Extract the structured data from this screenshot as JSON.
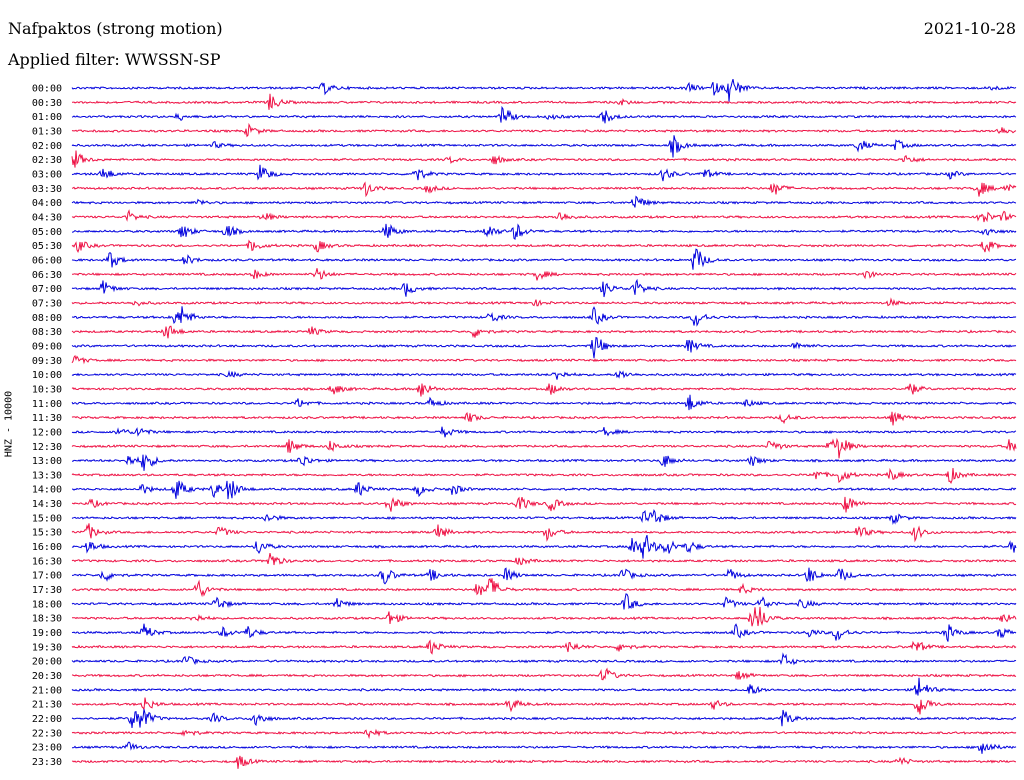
{
  "header": {
    "station_title": "Nafpaktos (strong motion)",
    "date": "2021-10-28",
    "filter": "Applied filter: WWSSN-SP"
  },
  "chart_data": {
    "type": "line",
    "title": "Nafpaktos (strong motion)",
    "subtitle": "Applied filter: WWSSN-SP",
    "ylabel": "HNZ - 10000",
    "xlabel": "",
    "series_colors": [
      "#0000dd",
      "#ee1144"
    ],
    "grid": false,
    "legend": "none",
    "row_labels": [
      "00:00",
      "00:30",
      "01:00",
      "01:30",
      "02:00",
      "02:30",
      "03:00",
      "03:30",
      "04:00",
      "04:30",
      "05:00",
      "05:30",
      "06:00",
      "06:30",
      "07:00",
      "07:30",
      "08:00",
      "08:30",
      "09:00",
      "09:30",
      "10:00",
      "10:30",
      "11:00",
      "11:30",
      "12:00",
      "12:30",
      "13:00",
      "13:30",
      "14:00",
      "14:30",
      "15:00",
      "15:30",
      "16:00",
      "16:30",
      "17:00",
      "17:30",
      "18:00",
      "18:30",
      "19:00",
      "19:30",
      "20:00",
      "20:30",
      "21:00",
      "21:30",
      "22:00",
      "22:30",
      "23:00",
      "23:30"
    ],
    "events_note": "Approximate signal bursts per row: [minute offset within 30-min window (0-30), relative amplitude 0-1]",
    "events": [
      [
        [
          8.0,
          0.4
        ],
        [
          19.6,
          0.3
        ],
        [
          20.4,
          0.4
        ],
        [
          20.9,
          1.0
        ],
        [
          29.2,
          0.15
        ]
      ],
      [
        [
          6.3,
          0.6
        ],
        [
          17.4,
          0.2
        ]
      ],
      [
        [
          3.4,
          0.25
        ],
        [
          13.7,
          0.7
        ],
        [
          16.9,
          0.5
        ],
        [
          15.2,
          0.2
        ]
      ],
      [
        [
          5.6,
          0.4
        ],
        [
          29.5,
          0.3
        ]
      ],
      [
        [
          4.5,
          0.2
        ],
        [
          19.1,
          0.7
        ],
        [
          25.0,
          0.45
        ],
        [
          26.2,
          0.35
        ]
      ],
      [
        [
          0.1,
          0.6
        ],
        [
          13.4,
          0.35
        ],
        [
          26.5,
          0.3
        ],
        [
          12.0,
          0.2
        ]
      ],
      [
        [
          1.0,
          0.45
        ],
        [
          6.0,
          0.7
        ],
        [
          10.9,
          0.6
        ],
        [
          18.8,
          0.45
        ],
        [
          20.1,
          0.35
        ],
        [
          27.9,
          0.25
        ]
      ],
      [
        [
          9.3,
          0.55
        ],
        [
          11.3,
          0.3
        ],
        [
          22.3,
          0.5
        ],
        [
          28.8,
          0.6
        ],
        [
          29.7,
          0.4
        ]
      ],
      [
        [
          4.0,
          0.2
        ],
        [
          17.9,
          0.55
        ]
      ],
      [
        [
          1.8,
          0.35
        ],
        [
          6.1,
          0.3
        ],
        [
          15.5,
          0.4
        ],
        [
          28.9,
          0.6
        ],
        [
          29.6,
          0.3
        ]
      ],
      [
        [
          3.5,
          0.55
        ],
        [
          4.9,
          0.5
        ],
        [
          10.0,
          0.6
        ],
        [
          13.2,
          0.5
        ],
        [
          14.1,
          0.6
        ],
        [
          29.0,
          0.4
        ]
      ],
      [
        [
          0.2,
          0.4
        ],
        [
          5.7,
          0.45
        ],
        [
          7.8,
          0.4
        ],
        [
          29.0,
          0.5
        ]
      ],
      [
        [
          1.2,
          0.6
        ],
        [
          3.6,
          0.35
        ],
        [
          19.8,
          1.0
        ]
      ],
      [
        [
          5.8,
          0.3
        ],
        [
          7.8,
          0.45
        ],
        [
          14.8,
          0.4
        ],
        [
          25.2,
          0.3
        ]
      ],
      [
        [
          1.0,
          0.5
        ],
        [
          10.6,
          0.5
        ],
        [
          16.9,
          0.5
        ],
        [
          17.9,
          0.6
        ]
      ],
      [
        [
          2.0,
          0.2
        ],
        [
          14.7,
          0.2
        ],
        [
          26.0,
          0.2
        ]
      ],
      [
        [
          3.2,
          0.45
        ],
        [
          3.5,
          0.6
        ],
        [
          13.3,
          0.4
        ],
        [
          16.6,
          0.6
        ],
        [
          19.8,
          0.7
        ]
      ],
      [
        [
          3.0,
          0.6
        ],
        [
          7.6,
          0.3
        ],
        [
          12.8,
          0.4
        ]
      ],
      [
        [
          16.6,
          0.9
        ],
        [
          19.6,
          0.5
        ],
        [
          23.0,
          0.3
        ]
      ],
      [
        [
          0.1,
          0.3
        ]
      ],
      [
        [
          5.0,
          0.2
        ],
        [
          15.4,
          0.35
        ],
        [
          17.4,
          0.3
        ]
      ],
      [
        [
          8.3,
          0.4
        ],
        [
          11.1,
          0.6
        ],
        [
          15.2,
          0.4
        ],
        [
          26.6,
          0.5
        ]
      ],
      [
        [
          7.2,
          0.3
        ],
        [
          11.4,
          0.35
        ],
        [
          19.6,
          0.6
        ],
        [
          21.4,
          0.25
        ]
      ],
      [
        [
          12.6,
          0.35
        ],
        [
          22.6,
          0.3
        ],
        [
          26.1,
          0.45
        ]
      ],
      [
        [
          1.5,
          0.3
        ],
        [
          2.1,
          0.35
        ],
        [
          11.8,
          0.4
        ],
        [
          16.9,
          0.3
        ]
      ],
      [
        [
          6.9,
          0.5
        ],
        [
          8.2,
          0.35
        ],
        [
          22.2,
          0.45
        ],
        [
          24.1,
          0.55
        ],
        [
          24.4,
          0.7
        ],
        [
          29.8,
          0.45
        ]
      ],
      [
        [
          1.8,
          0.4
        ],
        [
          2.3,
          0.7
        ],
        [
          7.3,
          0.45
        ],
        [
          18.8,
          0.5
        ],
        [
          21.6,
          0.35
        ]
      ],
      [
        [
          23.6,
          0.4
        ],
        [
          24.4,
          0.55
        ],
        [
          26.0,
          0.4
        ],
        [
          27.9,
          0.55
        ]
      ],
      [
        [
          2.2,
          0.35
        ],
        [
          3.3,
          0.8
        ],
        [
          4.5,
          0.5
        ],
        [
          5.0,
          0.8
        ],
        [
          9.1,
          0.5
        ],
        [
          11.0,
          0.4
        ],
        [
          12.1,
          0.4
        ]
      ],
      [
        [
          0.6,
          0.3
        ],
        [
          10.1,
          0.7
        ],
        [
          14.2,
          0.6
        ],
        [
          15.2,
          0.5
        ],
        [
          24.6,
          0.6
        ]
      ],
      [
        [
          6.2,
          0.3
        ],
        [
          18.2,
          0.45
        ],
        [
          18.5,
          0.5
        ],
        [
          26.1,
          0.35
        ]
      ],
      [
        [
          0.5,
          0.6
        ],
        [
          4.7,
          0.4
        ],
        [
          11.6,
          0.55
        ],
        [
          15.1,
          0.5
        ],
        [
          25.0,
          0.5
        ],
        [
          26.8,
          0.5
        ]
      ],
      [
        [
          0.5,
          0.45
        ],
        [
          5.9,
          0.55
        ],
        [
          17.8,
          0.7
        ],
        [
          18.2,
          0.9
        ],
        [
          18.9,
          0.6
        ],
        [
          19.6,
          0.4
        ],
        [
          29.9,
          0.6
        ]
      ],
      [
        [
          6.3,
          0.6
        ],
        [
          14.2,
          0.3
        ]
      ],
      [
        [
          1.0,
          0.45
        ],
        [
          9.9,
          0.7
        ],
        [
          11.4,
          0.4
        ],
        [
          13.8,
          0.45
        ],
        [
          17.5,
          0.5
        ],
        [
          20.9,
          0.4
        ],
        [
          23.4,
          0.6
        ],
        [
          24.4,
          0.5
        ]
      ],
      [
        [
          4.0,
          0.7
        ],
        [
          12.9,
          0.5
        ],
        [
          13.3,
          0.8
        ],
        [
          21.3,
          0.3
        ]
      ],
      [
        [
          4.6,
          0.5
        ],
        [
          8.4,
          0.4
        ],
        [
          17.6,
          0.65
        ],
        [
          20.8,
          0.4
        ],
        [
          21.9,
          0.5
        ],
        [
          23.2,
          0.35
        ]
      ],
      [
        [
          3.9,
          0.3
        ],
        [
          10.1,
          0.5
        ],
        [
          21.6,
          0.6
        ],
        [
          21.8,
          0.7
        ],
        [
          29.6,
          0.4
        ]
      ],
      [
        [
          2.3,
          0.55
        ],
        [
          4.8,
          0.35
        ],
        [
          5.6,
          0.4
        ],
        [
          21.1,
          0.45
        ],
        [
          23.4,
          0.3
        ],
        [
          24.3,
          0.6
        ],
        [
          27.8,
          0.6
        ],
        [
          29.5,
          0.4
        ]
      ],
      [
        [
          11.4,
          0.5
        ],
        [
          15.8,
          0.4
        ],
        [
          17.4,
          0.35
        ],
        [
          26.8,
          0.5
        ]
      ],
      [
        [
          3.6,
          0.4
        ],
        [
          22.6,
          0.5
        ]
      ],
      [
        [
          16.9,
          0.6
        ],
        [
          21.2,
          0.3
        ]
      ],
      [
        [
          21.5,
          0.5
        ],
        [
          26.9,
          0.9
        ]
      ],
      [
        [
          2.3,
          0.5
        ],
        [
          13.9,
          0.5
        ],
        [
          20.4,
          0.3
        ],
        [
          26.9,
          0.9
        ]
      ],
      [
        [
          1.9,
          0.7
        ],
        [
          2.2,
          0.8
        ],
        [
          4.5,
          0.3
        ],
        [
          5.8,
          0.6
        ],
        [
          22.6,
          0.6
        ]
      ],
      [
        [
          3.6,
          0.3
        ],
        [
          9.4,
          0.35
        ]
      ],
      [
        [
          1.8,
          0.3
        ],
        [
          28.9,
          0.65
        ]
      ],
      [
        [
          5.3,
          0.5
        ],
        [
          26.3,
          0.3
        ]
      ]
    ]
  }
}
